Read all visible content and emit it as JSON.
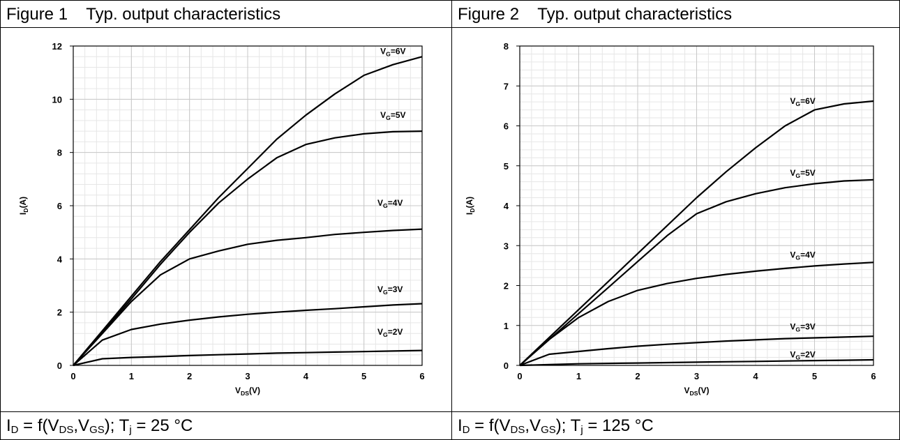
{
  "panels": [
    {
      "title": "Figure 1    Typ. output characteristics",
      "caption": {
        "id_main": "I",
        "id_sub": "D",
        "eq": " = f(V",
        "vds_sub": "DS",
        "comma": ",V",
        "vgs_sub": "GS",
        "mid": "); T",
        "tj_sub": "j",
        "tail": " = 25 °C"
      }
    },
    {
      "title": "Figure 2    Typ. output characteristics",
      "caption": {
        "id_main": "I",
        "id_sub": "D",
        "eq": " = f(V",
        "vds_sub": "DS",
        "comma": ",V",
        "vgs_sub": "GS",
        "mid": "); T",
        "tj_sub": "j",
        "tail": " = 125 °C"
      }
    }
  ],
  "chart_data": [
    {
      "type": "line",
      "xlabel": "V_DS(V)",
      "ylabel": "I_D(A)",
      "xlim": [
        0,
        6
      ],
      "ylim": [
        0,
        12
      ],
      "xticks": [
        0,
        1,
        2,
        3,
        4,
        5,
        6
      ],
      "yticks": [
        0,
        2,
        4,
        6,
        8,
        10,
        12
      ],
      "grid": true,
      "series": [
        {
          "name": "V_G=6V",
          "label_at": [
            5.5,
            11.7
          ],
          "x": [
            0,
            0.5,
            1,
            1.5,
            2,
            2.5,
            3,
            3.5,
            4,
            4.5,
            5,
            5.5,
            6
          ],
          "y": [
            0,
            1.3,
            2.6,
            3.9,
            5.1,
            6.3,
            7.4,
            8.5,
            9.4,
            10.2,
            10.9,
            11.3,
            11.6
          ]
        },
        {
          "name": "V_G=5V",
          "label_at": [
            5.5,
            9.3
          ],
          "x": [
            0,
            0.5,
            1,
            1.5,
            2,
            2.5,
            3,
            3.5,
            4,
            4.5,
            5,
            5.5,
            6
          ],
          "y": [
            0,
            1.25,
            2.5,
            3.8,
            5.0,
            6.1,
            7.0,
            7.8,
            8.3,
            8.55,
            8.7,
            8.78,
            8.8
          ]
        },
        {
          "name": "V_G=4V",
          "label_at": [
            5.45,
            6.0
          ],
          "x": [
            0,
            0.5,
            1,
            1.5,
            2,
            2.5,
            3,
            3.5,
            4,
            4.5,
            5,
            5.5,
            6
          ],
          "y": [
            0,
            1.2,
            2.4,
            3.4,
            4.0,
            4.3,
            4.55,
            4.7,
            4.8,
            4.92,
            5.0,
            5.07,
            5.12
          ]
        },
        {
          "name": "V_G=3V",
          "label_at": [
            5.45,
            2.75
          ],
          "x": [
            0,
            0.5,
            1,
            1.5,
            2,
            2.5,
            3,
            3.5,
            4,
            4.5,
            5,
            5.5,
            6
          ],
          "y": [
            0,
            0.95,
            1.35,
            1.55,
            1.7,
            1.82,
            1.92,
            2.0,
            2.07,
            2.13,
            2.2,
            2.27,
            2.32
          ]
        },
        {
          "name": "V_G=2V",
          "label_at": [
            5.45,
            1.15
          ],
          "x": [
            0,
            0.5,
            1,
            1.5,
            2,
            2.5,
            3,
            3.5,
            4,
            4.5,
            5,
            5.5,
            6
          ],
          "y": [
            0,
            0.25,
            0.3,
            0.33,
            0.37,
            0.4,
            0.43,
            0.46,
            0.48,
            0.5,
            0.52,
            0.54,
            0.56
          ]
        }
      ]
    },
    {
      "type": "line",
      "xlabel": "V_DS(V)",
      "ylabel": "I_D(A)",
      "xlim": [
        0,
        6
      ],
      "ylim": [
        0,
        8
      ],
      "xticks": [
        0,
        1,
        2,
        3,
        4,
        5,
        6
      ],
      "yticks": [
        0,
        1,
        2,
        3,
        4,
        5,
        6,
        7,
        8
      ],
      "grid": true,
      "series": [
        {
          "name": "V_G=6V",
          "label_at": [
            4.8,
            6.55
          ],
          "x": [
            0,
            0.5,
            1,
            1.5,
            2,
            2.5,
            3,
            3.5,
            4,
            4.5,
            5,
            5.5,
            6
          ],
          "y": [
            0,
            0.7,
            1.4,
            2.1,
            2.8,
            3.5,
            4.2,
            4.85,
            5.45,
            6.0,
            6.4,
            6.55,
            6.62
          ]
        },
        {
          "name": "V_G=5V",
          "label_at": [
            4.8,
            4.75
          ],
          "x": [
            0,
            0.5,
            1,
            1.5,
            2,
            2.5,
            3,
            3.5,
            4,
            4.5,
            5,
            5.5,
            6
          ],
          "y": [
            0,
            0.65,
            1.3,
            1.95,
            2.6,
            3.25,
            3.8,
            4.1,
            4.3,
            4.45,
            4.55,
            4.62,
            4.65
          ]
        },
        {
          "name": "V_G=4V",
          "label_at": [
            4.8,
            2.7
          ],
          "x": [
            0,
            0.5,
            1,
            1.5,
            2,
            2.5,
            3,
            3.5,
            4,
            4.5,
            5,
            5.5,
            6
          ],
          "y": [
            0,
            0.65,
            1.2,
            1.6,
            1.88,
            2.05,
            2.18,
            2.28,
            2.36,
            2.43,
            2.49,
            2.54,
            2.58
          ]
        },
        {
          "name": "V_G=3V",
          "label_at": [
            4.8,
            0.9
          ],
          "x": [
            0,
            0.5,
            1,
            1.5,
            2,
            2.5,
            3,
            3.5,
            4,
            4.5,
            5,
            5.5,
            6
          ],
          "y": [
            0,
            0.28,
            0.35,
            0.42,
            0.48,
            0.53,
            0.57,
            0.61,
            0.64,
            0.67,
            0.69,
            0.71,
            0.73
          ]
        },
        {
          "name": "V_G=2V",
          "label_at": [
            4.8,
            0.2
          ],
          "x": [
            0,
            0.5,
            1,
            1.5,
            2,
            2.5,
            3,
            3.5,
            4,
            4.5,
            5,
            5.5,
            6
          ],
          "y": [
            0,
            0.02,
            0.04,
            0.05,
            0.06,
            0.07,
            0.08,
            0.09,
            0.1,
            0.11,
            0.12,
            0.13,
            0.14
          ]
        }
      ]
    }
  ]
}
